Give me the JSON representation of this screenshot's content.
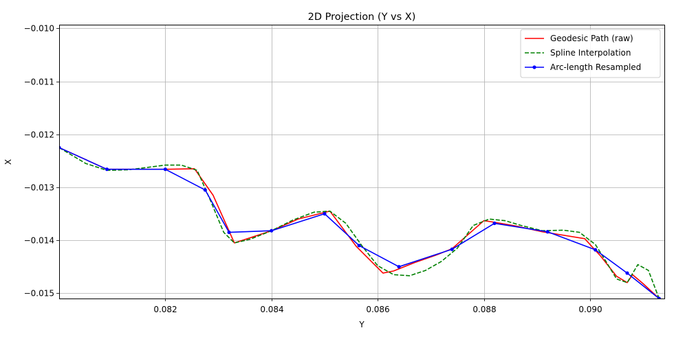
{
  "chart_data": {
    "type": "line",
    "title": "2D Projection (Y vs X)",
    "xlabel": "Y",
    "ylabel": "X",
    "xlim": [
      0.08,
      0.0914
    ],
    "ylim": [
      -0.0151,
      -0.00993
    ],
    "xticks": [
      0.082,
      0.084,
      0.086,
      0.088,
      0.09
    ],
    "xtick_labels": [
      "0.082",
      "0.084",
      "0.086",
      "0.088",
      "0.090"
    ],
    "yticks": [
      -0.015,
      -0.014,
      -0.013,
      -0.012,
      -0.011,
      -0.01
    ],
    "ytick_labels": [
      "−0.015",
      "−0.014",
      "−0.013",
      "−0.012",
      "−0.011",
      "−0.010"
    ],
    "grid": true,
    "legend_position": "top-right",
    "series": [
      {
        "name": "Geodesic Path (raw)",
        "color": "#ff0000",
        "style": "solid",
        "markers": false,
        "x": [
          0.08,
          0.0809,
          0.082,
          0.08255,
          0.0829,
          0.0833,
          0.0837,
          0.084,
          0.0845,
          0.0851,
          0.0856,
          0.0861,
          0.0863,
          0.0867,
          0.0871,
          0.0874,
          0.088,
          0.0882,
          0.0886,
          0.0891,
          0.0899,
          0.0902,
          0.0905,
          0.0907,
          0.0908,
          0.091,
          0.0913
        ],
        "y": [
          -0.01225,
          -0.01266,
          -0.01266,
          -0.01265,
          -0.01315,
          -0.01405,
          -0.01392,
          -0.01382,
          -0.0136,
          -0.01345,
          -0.01412,
          -0.01462,
          -0.01458,
          -0.01442,
          -0.01428,
          -0.01416,
          -0.01363,
          -0.01366,
          -0.01373,
          -0.01384,
          -0.01397,
          -0.0143,
          -0.01468,
          -0.0148,
          -0.01465,
          -0.01482,
          -0.0151
        ]
      },
      {
        "name": "Spline Interpolation",
        "color": "#008000",
        "style": "dashed",
        "markers": false,
        "x": [
          0.08,
          0.0805,
          0.0809,
          0.0813,
          0.0817,
          0.082,
          0.0823,
          0.0826,
          0.08285,
          0.0831,
          0.0833,
          0.0836,
          0.084,
          0.0844,
          0.0848,
          0.0851,
          0.0854,
          0.0857,
          0.086,
          0.0863,
          0.0866,
          0.0869,
          0.0872,
          0.0875,
          0.0878,
          0.0881,
          0.0884,
          0.0887,
          0.0891,
          0.0895,
          0.0898,
          0.0901,
          0.0903,
          0.0905,
          0.0907,
          0.0909,
          0.0911,
          0.0913
        ],
        "y": [
          -0.01225,
          -0.01255,
          -0.01268,
          -0.01267,
          -0.01262,
          -0.01258,
          -0.01258,
          -0.01268,
          -0.01325,
          -0.01385,
          -0.01405,
          -0.01398,
          -0.01382,
          -0.01362,
          -0.01347,
          -0.01345,
          -0.01368,
          -0.0141,
          -0.01448,
          -0.01465,
          -0.01467,
          -0.01457,
          -0.0144,
          -0.01415,
          -0.01372,
          -0.0136,
          -0.01363,
          -0.01372,
          -0.01382,
          -0.01381,
          -0.01385,
          -0.01408,
          -0.0144,
          -0.01473,
          -0.0148,
          -0.01446,
          -0.01457,
          -0.0151
        ]
      },
      {
        "name": "Arc-length Resampled",
        "color": "#0000ff",
        "style": "solid",
        "markers": true,
        "x": [
          0.08,
          0.0809,
          0.082,
          0.08275,
          0.0832,
          0.084,
          0.085,
          0.08565,
          0.0864,
          0.0874,
          0.0882,
          0.0892,
          0.0901,
          0.0907,
          0.0913
        ],
        "y": [
          -0.01225,
          -0.01266,
          -0.01266,
          -0.01305,
          -0.01385,
          -0.01382,
          -0.0135,
          -0.0141,
          -0.0145,
          -0.01417,
          -0.01368,
          -0.01384,
          -0.01418,
          -0.01462,
          -0.0151
        ]
      }
    ]
  }
}
